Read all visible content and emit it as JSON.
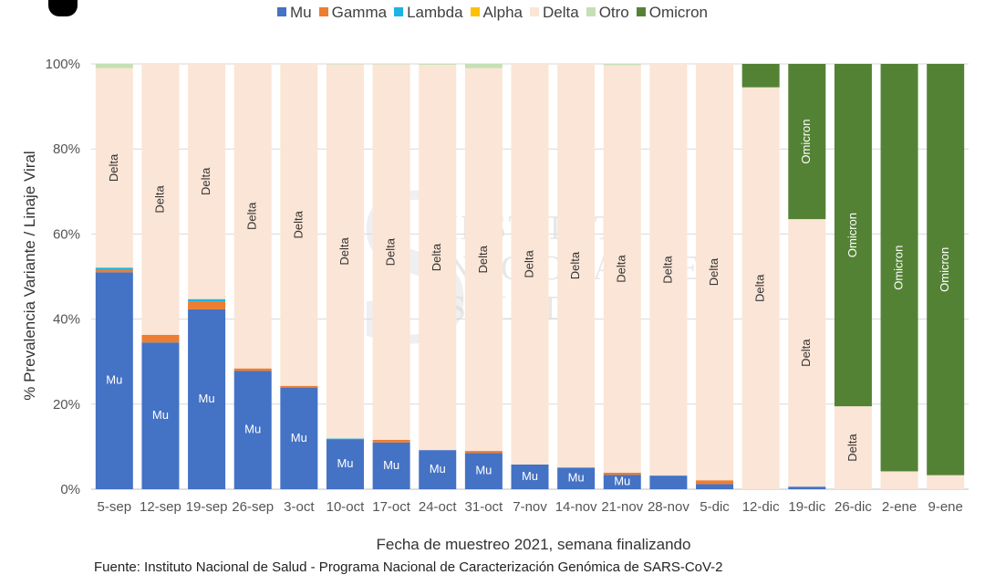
{
  "legend_title": "",
  "source": "Fuente: Instituto Nacional de Salud - Programa Nacional de Caracterización Genómica de SARS-CoV-2",
  "watermark": [
    "INSTITUTO",
    "NACIONAL DE",
    "SALUD"
  ],
  "chart_data": {
    "type": "bar",
    "stacked": true,
    "title": "",
    "xlabel": "Fecha de muestreo 2021, semana finalizando",
    "ylabel": "% Prevalencia Variante / Linaje Viral",
    "ylim": [
      0,
      100
    ],
    "yticks": [
      "0%",
      "20%",
      "40%",
      "60%",
      "80%",
      "100%"
    ],
    "ytick_values": [
      0,
      20,
      40,
      60,
      80,
      100
    ],
    "grid": "horizontal",
    "legend_position": "top",
    "categories": [
      "5-sep",
      "12-sep",
      "19-sep",
      "26-sep",
      "3-oct",
      "10-oct",
      "17-oct",
      "24-oct",
      "31-oct",
      "7-nov",
      "14-nov",
      "21-nov",
      "28-nov",
      "5-dic",
      "12-dic",
      "19-dic",
      "26-dic",
      "2-ene",
      "9-ene"
    ],
    "series": [
      {
        "name": "Mu",
        "color": "#4472c4",
        "values": [
          51.0,
          34.5,
          42.3,
          27.8,
          23.9,
          11.7,
          11.0,
          9.2,
          8.5,
          5.8,
          5.1,
          3.4,
          3.2,
          1.2,
          0,
          0.6,
          0,
          0,
          0
        ]
      },
      {
        "name": "Gamma",
        "color": "#ed7d31",
        "values": [
          0.6,
          1.8,
          1.9,
          0.6,
          0.4,
          0,
          0.6,
          0,
          0.5,
          0,
          0,
          0.5,
          0,
          0.9,
          0,
          0,
          0,
          0,
          0
        ]
      },
      {
        "name": "Lambda",
        "color": "#1cb4e4",
        "values": [
          0.5,
          0,
          0.5,
          0,
          0,
          0.2,
          0,
          0,
          0,
          0,
          0,
          0,
          0,
          0,
          0,
          0,
          0,
          0,
          0
        ]
      },
      {
        "name": "Alpha",
        "color": "#ffc000",
        "values": [
          0,
          0,
          0,
          0,
          0,
          0,
          0,
          0,
          0,
          0,
          0,
          0,
          0,
          0,
          0,
          0,
          0,
          0,
          0
        ]
      },
      {
        "name": "Delta",
        "color": "#fbe5d6",
        "values": [
          46.9,
          63.7,
          55.3,
          71.6,
          75.7,
          88.0,
          88.3,
          90.6,
          90.0,
          94.2,
          94.9,
          95.8,
          96.8,
          97.9,
          94.5,
          62.9,
          19.5,
          4.2,
          3.3
        ]
      },
      {
        "name": "Otro",
        "color": "#c5e0b4",
        "values": [
          1.0,
          0,
          0,
          0,
          0,
          0.1,
          0.1,
          0.2,
          1.0,
          0,
          0,
          0.3,
          0,
          0,
          0,
          0,
          0,
          0,
          0
        ]
      },
      {
        "name": "Omicron",
        "color": "#548235",
        "values": [
          0,
          0,
          0,
          0,
          0,
          0,
          0,
          0,
          0,
          0,
          0,
          0,
          0,
          0,
          5.5,
          36.5,
          80.5,
          95.8,
          96.7
        ]
      }
    ],
    "bar_labels": [
      {
        "series": "Mu",
        "text": "Mu",
        "categories": [
          "5-sep",
          "12-sep",
          "19-sep",
          "26-sep",
          "3-oct",
          "10-oct",
          "17-oct",
          "24-oct",
          "31-oct",
          "7-nov",
          "14-nov",
          "21-nov"
        ]
      },
      {
        "series": "Delta",
        "text": "Delta",
        "categories": [
          "5-sep",
          "12-sep",
          "19-sep",
          "26-sep",
          "3-oct",
          "10-oct",
          "17-oct",
          "24-oct",
          "31-oct",
          "7-nov",
          "14-nov",
          "21-nov",
          "28-nov",
          "5-dic",
          "12-dic",
          "19-dic",
          "26-dic"
        ]
      },
      {
        "series": "Omicron",
        "text": "Omicron",
        "categories": [
          "19-dic",
          "26-dic",
          "2-ene",
          "9-ene"
        ]
      }
    ]
  }
}
